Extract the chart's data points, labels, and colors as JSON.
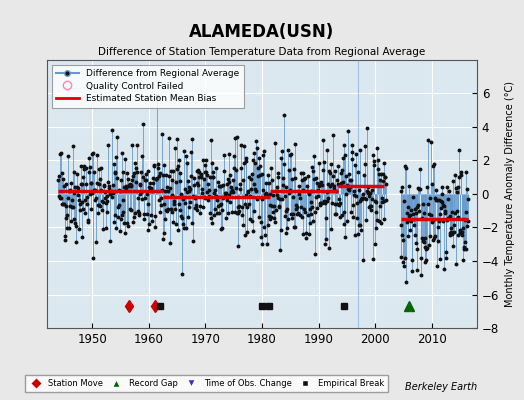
{
  "title": "ALAMEDA(USN)",
  "subtitle": "Difference of Station Temperature Data from Regional Average",
  "ylabel": "Monthly Temperature Anomaly Difference (°C)",
  "xlabel_bottom": "Berkeley Earth",
  "xlim": [
    1942,
    2018
  ],
  "ylim": [
    -8,
    8
  ],
  "yticks": [
    -8,
    -6,
    -4,
    -2,
    0,
    2,
    4,
    6
  ],
  "xticks": [
    1950,
    1960,
    1970,
    1980,
    1990,
    2000,
    2010
  ],
  "bg_color": "#e8e8e8",
  "plot_bg_color": "#dce8f0",
  "line_color": "#6699cc",
  "marker_color": "#111111",
  "bias_color": "#dd0000",
  "grid_color": "#ffffff",
  "seed": 42,
  "segments": [
    {
      "start": 1944.0,
      "end": 1957.0,
      "bias": 0.15
    },
    {
      "start": 1957.0,
      "end": 1962.5,
      "bias": 0.15
    },
    {
      "start": 1962.5,
      "end": 1979.5,
      "bias": -0.15
    },
    {
      "start": 1979.5,
      "end": 1981.5,
      "bias": -0.15
    },
    {
      "start": 1981.5,
      "end": 1993.5,
      "bias": 0.2
    },
    {
      "start": 1993.5,
      "end": 2004.0,
      "bias": 0.5
    },
    {
      "start": 2004.0,
      "end": 2016.0,
      "bias": -1.5
    }
  ],
  "station_moves": [
    1956.5,
    1961.0
  ],
  "empirical_breaks": [
    1962.0,
    1980.0,
    1981.3,
    1994.5
  ],
  "record_gap": [
    2006.0
  ],
  "time_obs_change": [],
  "gap_start": 2002.0,
  "gap_end": 2004.5,
  "late_start": 2004.5
}
